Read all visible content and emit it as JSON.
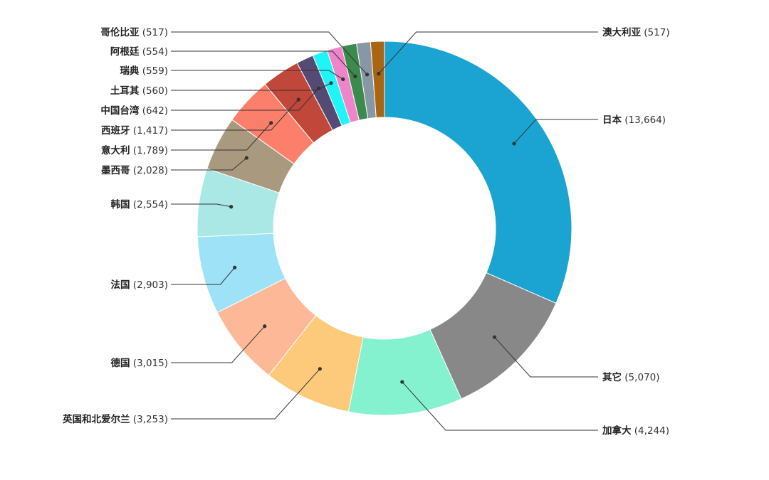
{
  "chart_data": {
    "type": "pie",
    "variant": "donut",
    "title": "",
    "slices": [
      {
        "label": "日本",
        "value": 13664,
        "display": "(13,664)",
        "color": "#1ba4d1"
      },
      {
        "label": "其它",
        "value": 5070,
        "display": "(5,070)",
        "color": "#888888"
      },
      {
        "label": "加拿大",
        "value": 4244,
        "display": "(4,244)",
        "color": "#84f1cf"
      },
      {
        "label": "英国和北爱尔兰",
        "value": 3253,
        "display": "(3,253)",
        "color": "#fdc97a"
      },
      {
        "label": "德国",
        "value": 3015,
        "display": "(3,015)",
        "color": "#fdb997"
      },
      {
        "label": "法国",
        "value": 2903,
        "display": "(2,903)",
        "color": "#9de2f7"
      },
      {
        "label": "韩国",
        "value": 2554,
        "display": "(2,554)",
        "color": "#a9e8e5"
      },
      {
        "label": "墨西哥",
        "value": 2028,
        "display": "(2,028)",
        "color": "#a99a7f"
      },
      {
        "label": "意大利",
        "value": 1789,
        "display": "(1,789)",
        "color": "#fb7f6a"
      },
      {
        "label": "西班牙",
        "value": 1417,
        "display": "(1,417)",
        "color": "#c0473a"
      },
      {
        "label": "中国台湾",
        "value": 642,
        "display": "(642)",
        "color": "#554a73"
      },
      {
        "label": "土耳其",
        "value": 560,
        "display": "(560)",
        "color": "#1ff5f7"
      },
      {
        "label": "瑞典",
        "value": 559,
        "display": "(559)",
        "color": "#ee84c9"
      },
      {
        "label": "阿根廷",
        "value": 554,
        "display": "(554)",
        "color": "#3d8a4f"
      },
      {
        "label": "哥伦比亚",
        "value": 517,
        "display": "(517)",
        "color": "#8897a5"
      },
      {
        "label": "澳大利亚",
        "value": 517,
        "display": "(517)",
        "color": "#a86514"
      }
    ],
    "start_angle": "12 o'clock",
    "direction": "clockwise",
    "legend": "none (leader-line labels)"
  }
}
